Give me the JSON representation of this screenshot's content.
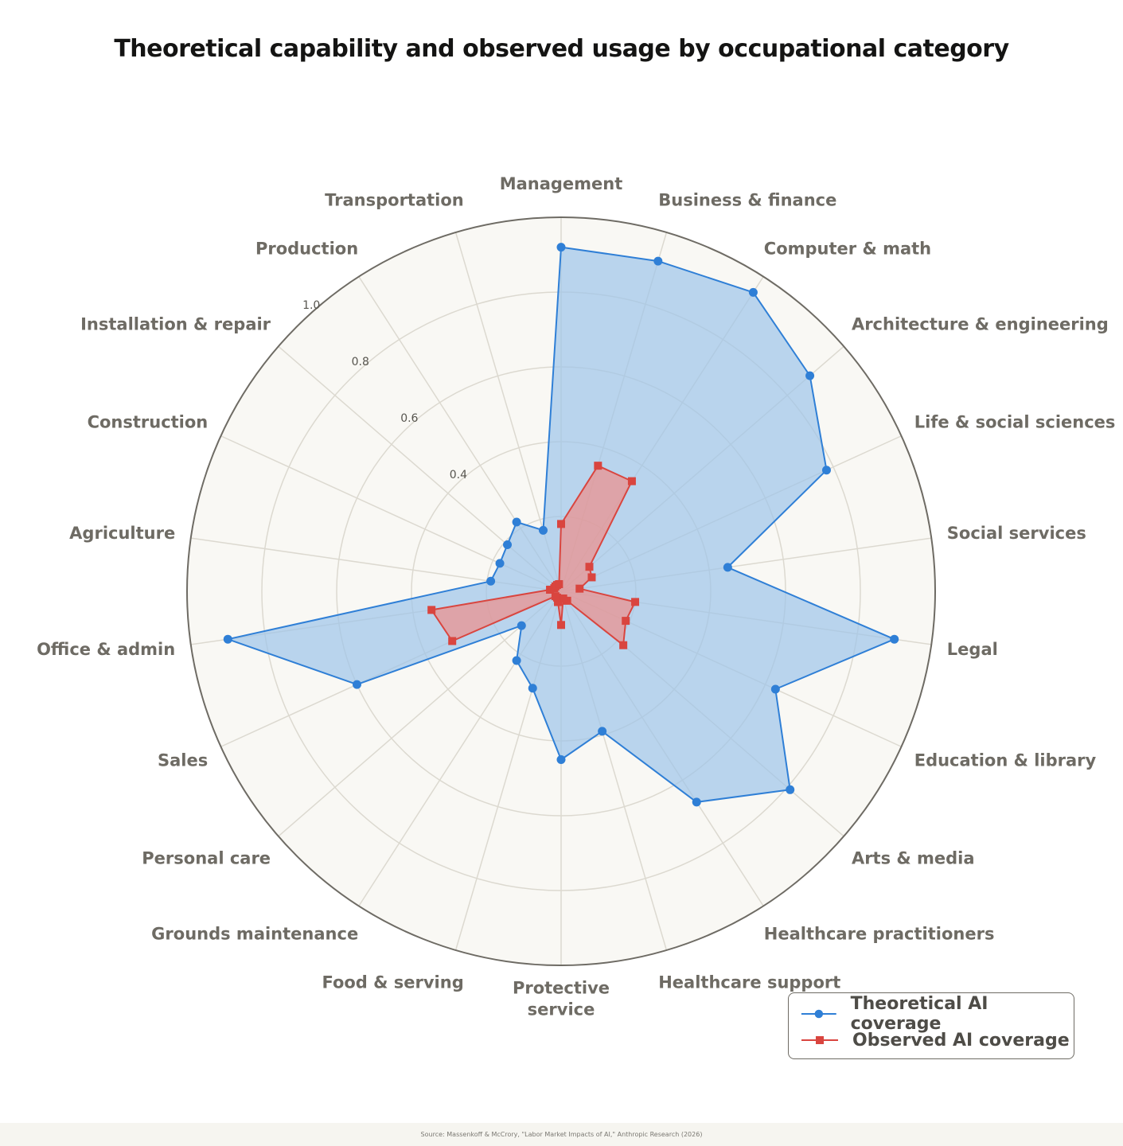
{
  "chart_data": {
    "type": "radar",
    "title": "Theoretical capability and observed usage by occupational category",
    "categories": [
      "Management",
      "Business & finance",
      "Computer & math",
      "Architecture & engineering",
      "Life & social sciences",
      "Social services",
      "Legal",
      "Education & library",
      "Arts & media",
      "Healthcare practitioners",
      "Healthcare support",
      "Protective service",
      "Food & serving",
      "Grounds maintenance",
      "Personal care",
      "Sales",
      "Office & admin",
      "Agriculture",
      "Construction",
      "Installation & repair",
      "Production",
      "Transportation"
    ],
    "category_lines": [
      [
        "Management"
      ],
      [
        "Business & finance"
      ],
      [
        "Computer & math"
      ],
      [
        "Architecture & engineering"
      ],
      [
        "Life & social sciences"
      ],
      [
        "Social services"
      ],
      [
        "Legal"
      ],
      [
        "Education & library"
      ],
      [
        "Arts & media"
      ],
      [
        "Healthcare practitioners"
      ],
      [
        "Healthcare support"
      ],
      [
        "Protective",
        "service"
      ],
      [
        "Food & serving"
      ],
      [
        "Grounds maintenance"
      ],
      [
        "Personal care"
      ],
      [
        "Sales"
      ],
      [
        "Office & admin"
      ],
      [
        "Agriculture"
      ],
      [
        "Construction"
      ],
      [
        "Installation & repair"
      ],
      [
        "Production"
      ],
      [
        "Transportation"
      ]
    ],
    "series": [
      {
        "name": "Theoretical AI coverage",
        "color": "#2f7fd6",
        "fill": "#9ec4ea",
        "marker": "circle",
        "values": [
          0.92,
          0.92,
          0.95,
          0.88,
          0.78,
          0.45,
          0.9,
          0.63,
          0.81,
          0.67,
          0.39,
          0.45,
          0.27,
          0.22,
          0.14,
          0.6,
          0.9,
          0.19,
          0.18,
          0.19,
          0.22,
          0.17
        ]
      },
      {
        "name": "Observed AI coverage",
        "color": "#d9453f",
        "fill": "#ee8e8a",
        "marker": "square",
        "values": [
          0.18,
          0.35,
          0.35,
          0.1,
          0.09,
          0.05,
          0.2,
          0.19,
          0.22,
          0.03,
          0.02,
          0.09,
          0.03,
          0.02,
          0.02,
          0.32,
          0.35,
          0.03,
          0.02,
          0.02,
          0.02,
          0.02
        ]
      }
    ],
    "rlim": [
      0,
      1.0
    ],
    "radial_ticks": [
      0.4,
      0.6,
      0.8,
      1.0
    ],
    "radial_tick_labels": [
      "0.4",
      "0.6",
      "0.8",
      "1.0"
    ],
    "grid": true,
    "legend_position": "bottom-right"
  },
  "footer": {
    "source": "Source: Massenkoff & McCrory, \"Labor Market Impacts of AI,\" Anthropic Research (2026)"
  }
}
